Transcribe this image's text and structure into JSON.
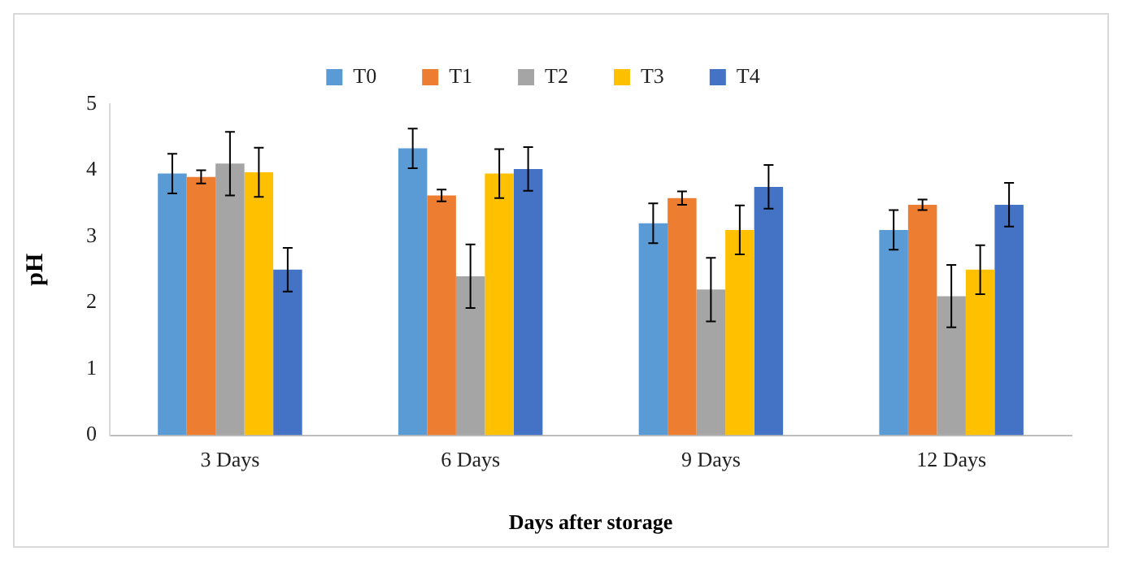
{
  "chart_data": {
    "type": "bar",
    "xlabel": "Days after storage",
    "ylabel": "pH",
    "categories": [
      "3 Days",
      "6 Days",
      "9 Days",
      "12 Days"
    ],
    "series": [
      {
        "name": "T0",
        "color": "#5b9bd5",
        "values": [
          3.95,
          4.33,
          3.2,
          3.1
        ],
        "errors": [
          0.3,
          0.3,
          0.3,
          0.3
        ]
      },
      {
        "name": "T1",
        "color": "#ed7d31",
        "values": [
          3.9,
          3.62,
          3.58,
          3.48
        ],
        "errors": [
          0.1,
          0.09,
          0.1,
          0.08
        ]
      },
      {
        "name": "T2",
        "color": "#a5a5a5",
        "values": [
          4.1,
          2.4,
          2.2,
          2.1
        ],
        "errors": [
          0.48,
          0.48,
          0.48,
          0.47
        ]
      },
      {
        "name": "T3",
        "color": "#ffc000",
        "values": [
          3.97,
          3.95,
          3.1,
          2.5
        ],
        "errors": [
          0.37,
          0.37,
          0.37,
          0.37
        ]
      },
      {
        "name": "T4",
        "color": "#4472c4",
        "values": [
          2.5,
          4.02,
          3.75,
          3.48
        ],
        "errors": [
          0.33,
          0.33,
          0.33,
          0.33
        ]
      }
    ],
    "ylim": [
      0,
      5
    ],
    "yticks": [
      0,
      1,
      2,
      3,
      4,
      5
    ],
    "grid": false,
    "legend": "top"
  }
}
